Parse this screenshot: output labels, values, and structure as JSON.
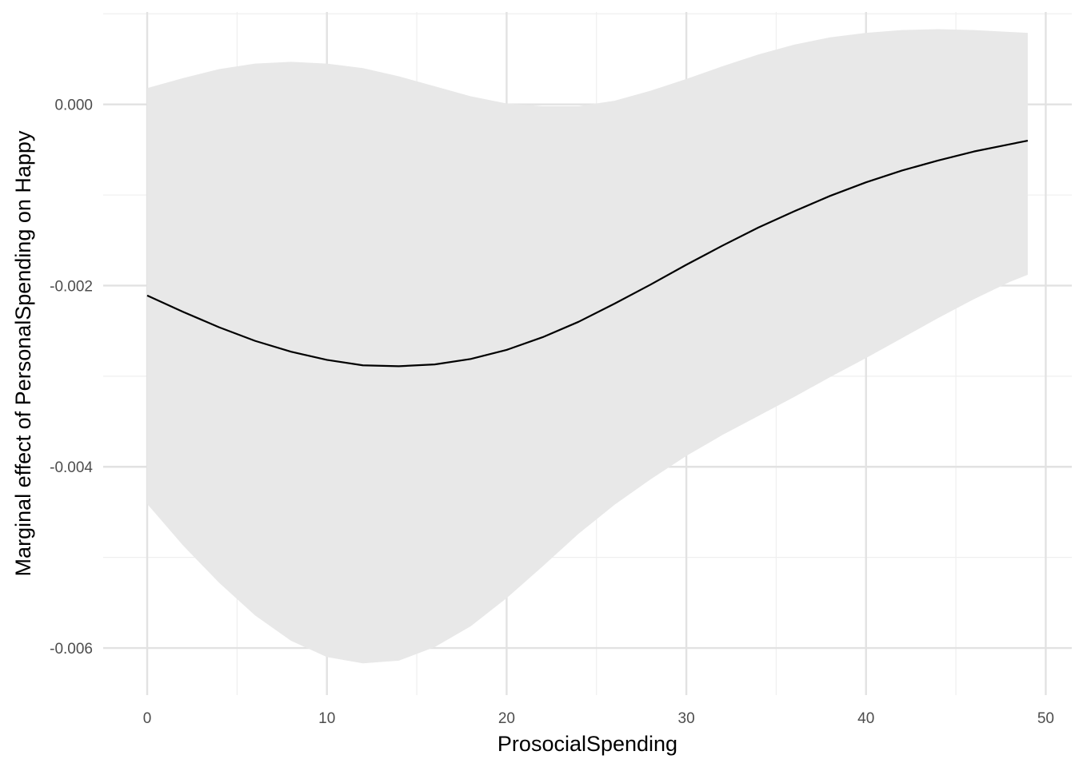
{
  "chart_data": {
    "type": "line",
    "title": "",
    "xlabel": "ProsocialSpending",
    "ylabel": "Marginal effect of PersonalSpending on Happy",
    "xlim": [
      -2.45,
      51.45
    ],
    "ylim": [
      -0.00652,
      0.00102
    ],
    "x_ticks": [
      0,
      10,
      20,
      30,
      40,
      50
    ],
    "x_tick_labels": [
      "0",
      "10",
      "20",
      "30",
      "40",
      "50"
    ],
    "x_minor_ticks": [
      5,
      15,
      25,
      35,
      45
    ],
    "y_ticks": [
      -0.006,
      -0.004,
      -0.002,
      0.0
    ],
    "y_tick_labels": [
      "-0.006",
      "-0.004",
      "-0.002",
      "0.000"
    ],
    "y_minor_ticks": [
      -0.005,
      -0.003,
      -0.001,
      0.001
    ],
    "grid": true,
    "legend": "none",
    "colors": {
      "line": "#000000",
      "ribbon": "#e8e8e8",
      "grid_major": "#e2e2e2",
      "grid_minor": "#efefef",
      "background": "#ffffff"
    },
    "series": [
      {
        "x": [
          0,
          2,
          4,
          6,
          8,
          10,
          12,
          14,
          16,
          18,
          20,
          22,
          24,
          26,
          28,
          30,
          32,
          34,
          36,
          38,
          40,
          42,
          44,
          46,
          48,
          49
        ],
        "estimate": [
          -0.00211,
          -0.00229,
          -0.00246,
          -0.00261,
          -0.00273,
          -0.00282,
          -0.00288,
          -0.00289,
          -0.00287,
          -0.00281,
          -0.00271,
          -0.00257,
          -0.0024,
          -0.0022,
          -0.00199,
          -0.00177,
          -0.00156,
          -0.00136,
          -0.00118,
          -0.00101,
          -0.00086,
          -0.00073,
          -0.00062,
          -0.00052,
          -0.00044,
          -0.0004
        ],
        "lower": [
          -0.00441,
          -0.00487,
          -0.00528,
          -0.00564,
          -0.00592,
          -0.0061,
          -0.00617,
          -0.00614,
          -0.00599,
          -0.00576,
          -0.00545,
          -0.0051,
          -0.00474,
          -0.00442,
          -0.00414,
          -0.00388,
          -0.00365,
          -0.00344,
          -0.00323,
          -0.00301,
          -0.0028,
          -0.00258,
          -0.00236,
          -0.00215,
          -0.00196,
          -0.00188
        ],
        "upper": [
          0.00018,
          0.00029,
          0.00039,
          0.00045,
          0.00047,
          0.00045,
          0.0004,
          0.00031,
          0.0002,
          9e-05,
          1e-05,
          -2e-05,
          -2e-05,
          4e-05,
          0.00015,
          0.00028,
          0.00042,
          0.00055,
          0.00066,
          0.00074,
          0.00079,
          0.00082,
          0.00083,
          0.00082,
          0.0008,
          0.00079
        ]
      }
    ]
  }
}
